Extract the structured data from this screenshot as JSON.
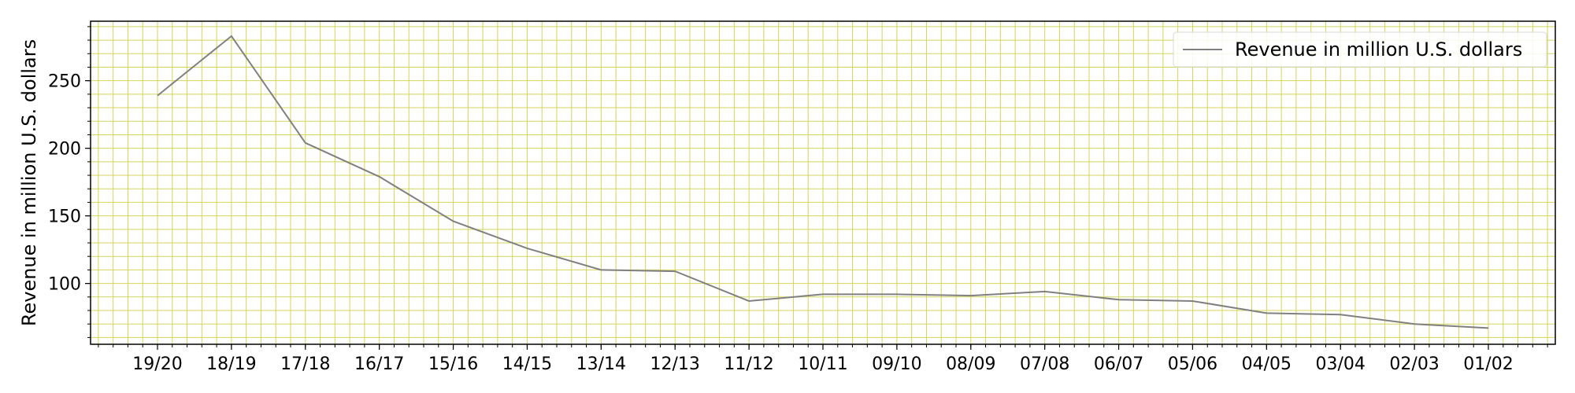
{
  "chart_data": {
    "type": "line",
    "categories": [
      "19/20",
      "18/19",
      "17/18",
      "16/17",
      "15/16",
      "14/15",
      "13/14",
      "12/13",
      "11/12",
      "10/11",
      "09/10",
      "08/09",
      "07/08",
      "06/07",
      "05/06",
      "04/05",
      "03/04",
      "02/03",
      "01/02"
    ],
    "series": [
      {
        "name": "Revenue in million U.S. dollars",
        "values": [
          239,
          283,
          204,
          179,
          146,
          126,
          110,
          109,
          87,
          92,
          92,
          91,
          94,
          88,
          87,
          78,
          77,
          70,
          67
        ],
        "color": "#808080"
      }
    ],
    "title": "",
    "xlabel": "",
    "ylabel": "Revenue in million U.S. dollars",
    "ylim": [
      55,
      294
    ],
    "yticks": [
      100,
      150,
      200,
      250
    ],
    "grid": true,
    "grid_color": "#d4d45a",
    "legend_position": "top-right"
  }
}
